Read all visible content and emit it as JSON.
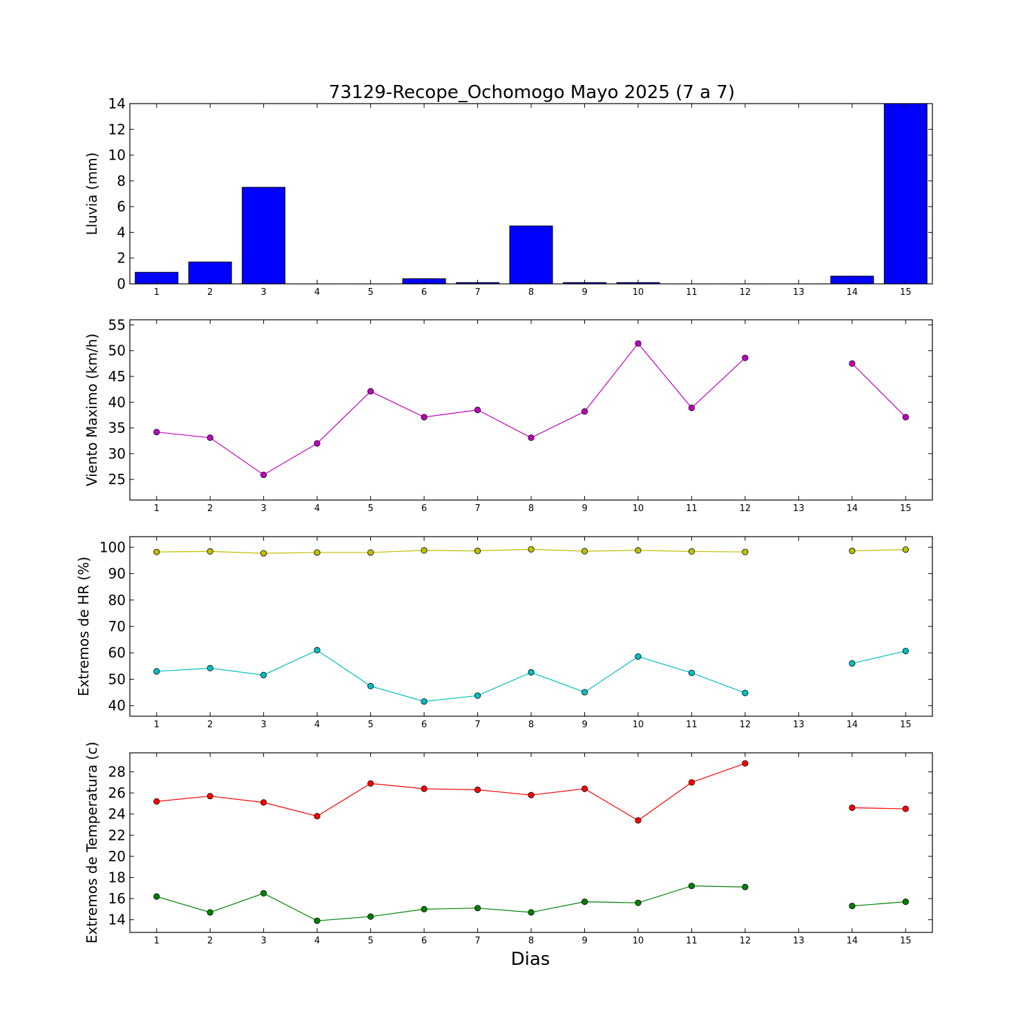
{
  "figure": {
    "title": "73129-Recope_Ochomogo Mayo 2025  (7 a 7)",
    "xlabel": "Dias"
  },
  "chart_data": [
    {
      "type": "bar",
      "ylabel": "Lluvia (mm)",
      "categories": [
        "1",
        "2",
        "3",
        "4",
        "5",
        "6",
        "7",
        "8",
        "9",
        "10",
        "11",
        "12",
        "13",
        "14",
        "15"
      ],
      "xlim": [
        0.5,
        15.5
      ],
      "ylim": [
        0,
        14
      ],
      "yticks": [
        0,
        2,
        4,
        6,
        8,
        10,
        12,
        14
      ],
      "grid": false,
      "series": [
        {
          "color": "#0000ff",
          "values": [
            0.9,
            1.7,
            7.5,
            0,
            0,
            0.4,
            0.1,
            4.5,
            0.1,
            0.1,
            0,
            0,
            null,
            0.6,
            14
          ]
        }
      ]
    },
    {
      "type": "line",
      "ylabel": "Viento Maximo (km/h)",
      "categories": [
        "1",
        "2",
        "3",
        "4",
        "5",
        "6",
        "7",
        "8",
        "9",
        "10",
        "11",
        "12",
        "13",
        "14",
        "15"
      ],
      "xlim": [
        0.5,
        15.5
      ],
      "ylim": [
        21,
        56
      ],
      "yticks": [
        25,
        30,
        35,
        40,
        45,
        50,
        55
      ],
      "grid": false,
      "series": [
        {
          "color": "#bf00bf",
          "values": [
            34.2,
            33.1,
            25.9,
            32.0,
            42.1,
            37.1,
            38.5,
            33.1,
            38.2,
            51.4,
            38.9,
            48.6,
            null,
            47.5,
            37.1
          ]
        }
      ]
    },
    {
      "type": "line",
      "ylabel": "Extremos de HR (%)",
      "categories": [
        "1",
        "2",
        "3",
        "4",
        "5",
        "6",
        "7",
        "8",
        "9",
        "10",
        "11",
        "12",
        "13",
        "14",
        "15"
      ],
      "xlim": [
        0.5,
        15.5
      ],
      "ylim": [
        36,
        104
      ],
      "yticks": [
        40,
        50,
        60,
        70,
        80,
        90,
        100
      ],
      "grid": false,
      "series": [
        {
          "color": "#bfbf00",
          "values": [
            98.2,
            98.4,
            97.7,
            98.0,
            98.0,
            98.8,
            98.6,
            99.2,
            98.5,
            98.8,
            98.4,
            98.2,
            null,
            98.6,
            99.1
          ]
        },
        {
          "color": "#00bfbf",
          "values": [
            53.0,
            54.2,
            51.6,
            61.0,
            47.4,
            41.6,
            43.8,
            52.6,
            45.1,
            58.6,
            52.4,
            44.8,
            null,
            56.0,
            60.7
          ]
        }
      ]
    },
    {
      "type": "line",
      "ylabel": "Extremos de Temperatura (c)",
      "categories": [
        "1",
        "2",
        "3",
        "4",
        "5",
        "6",
        "7",
        "8",
        "9",
        "10",
        "11",
        "12",
        "13",
        "14",
        "15"
      ],
      "xlim": [
        0.5,
        15.5
      ],
      "ylim": [
        12.8,
        29.8
      ],
      "yticks": [
        14,
        16,
        18,
        20,
        22,
        24,
        26,
        28
      ],
      "grid": false,
      "series": [
        {
          "color": "#ff0000",
          "values": [
            25.2,
            25.7,
            25.1,
            23.8,
            26.9,
            26.4,
            26.3,
            25.8,
            26.4,
            23.4,
            27.0,
            28.8,
            null,
            24.6,
            24.5
          ]
        },
        {
          "color": "#008000",
          "values": [
            16.2,
            14.7,
            16.5,
            13.9,
            14.3,
            15.0,
            15.1,
            14.7,
            15.7,
            15.6,
            17.2,
            17.1,
            null,
            15.3,
            15.7
          ]
        }
      ]
    }
  ]
}
